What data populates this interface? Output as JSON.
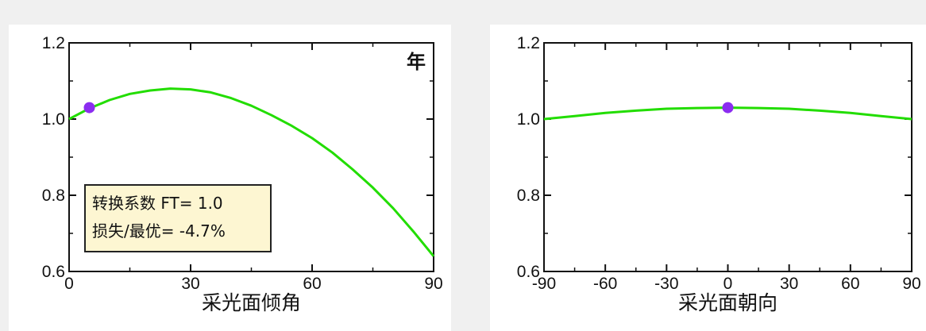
{
  "chart_data": [
    {
      "type": "line",
      "title": "",
      "xlabel": "采光面倾角",
      "ylabel": "",
      "corner_label": "年",
      "xlim": [
        0,
        90
      ],
      "ylim": [
        0.6,
        1.2
      ],
      "x_ticks": [
        0,
        30,
        60,
        90
      ],
      "y_ticks": [
        "0.6",
        "0.8",
        "1.0",
        "1.2"
      ],
      "series": [
        {
          "color": "#22dd00",
          "x": [
            0,
            5,
            10,
            15,
            20,
            25,
            30,
            35,
            40,
            45,
            50,
            55,
            60,
            65,
            70,
            75,
            80,
            85,
            90
          ],
          "y": [
            1.0,
            1.028,
            1.05,
            1.066,
            1.075,
            1.08,
            1.078,
            1.07,
            1.055,
            1.035,
            1.01,
            0.982,
            0.95,
            0.912,
            0.868,
            0.82,
            0.766,
            0.705,
            0.64
          ]
        }
      ],
      "marker": {
        "x": 5,
        "y": 1.03,
        "color": "#8b2cf0"
      },
      "info_box": {
        "line1": "转换系数 FT= 1.0",
        "line2": "损失/最优= -4.7%"
      }
    },
    {
      "type": "line",
      "title": "",
      "xlabel": "采光面朝向",
      "ylabel": "",
      "xlim": [
        -90,
        90
      ],
      "ylim": [
        0.6,
        1.2
      ],
      "x_ticks": [
        -90,
        -60,
        -30,
        0,
        30,
        60,
        90
      ],
      "y_ticks": [
        "0.6",
        "0.8",
        "1.0",
        "1.2"
      ],
      "series": [
        {
          "color": "#22dd00",
          "x": [
            -90,
            -75,
            -60,
            -45,
            -30,
            -15,
            0,
            15,
            30,
            45,
            60,
            75,
            90
          ],
          "y": [
            1.0,
            1.008,
            1.016,
            1.022,
            1.027,
            1.029,
            1.03,
            1.029,
            1.027,
            1.022,
            1.016,
            1.008,
            1.0
          ]
        }
      ],
      "marker": {
        "x": 0,
        "y": 1.03,
        "color": "#8b2cf0"
      }
    }
  ]
}
